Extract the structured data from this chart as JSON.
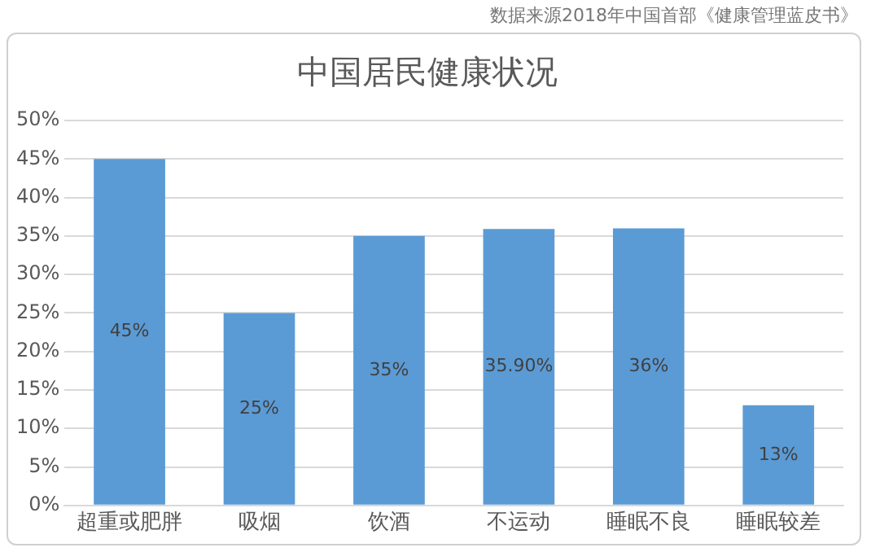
{
  "chart_data": {
    "type": "bar",
    "title": "中国居民健康状况",
    "annotations": [
      "数据来源2018年中国首部《健康管理蓝皮书》"
    ],
    "categories": [
      "超重或肥胖",
      "吸烟",
      "饮酒",
      "不运动",
      "睡眠不良",
      "睡眠较差"
    ],
    "values": [
      45,
      25,
      35,
      35.9,
      36,
      13
    ],
    "value_labels": [
      "45%",
      "25%",
      "35%",
      "35.90%",
      "36%",
      "13%"
    ],
    "color": "#5b9bd5",
    "ylim": [
      0,
      50
    ],
    "yticks": [
      {
        "value": 0,
        "label": "0%"
      },
      {
        "value": 5,
        "label": "5%"
      },
      {
        "value": 10,
        "label": "10%"
      },
      {
        "value": 15,
        "label": "15%"
      },
      {
        "value": 20,
        "label": "20%"
      },
      {
        "value": 25,
        "label": "25%"
      },
      {
        "value": 30,
        "label": "30%"
      },
      {
        "value": 35,
        "label": "35%"
      },
      {
        "value": 40,
        "label": "40%"
      },
      {
        "value": 45,
        "label": "45%"
      },
      {
        "value": 50,
        "label": "50%"
      }
    ],
    "grid": "y"
  }
}
